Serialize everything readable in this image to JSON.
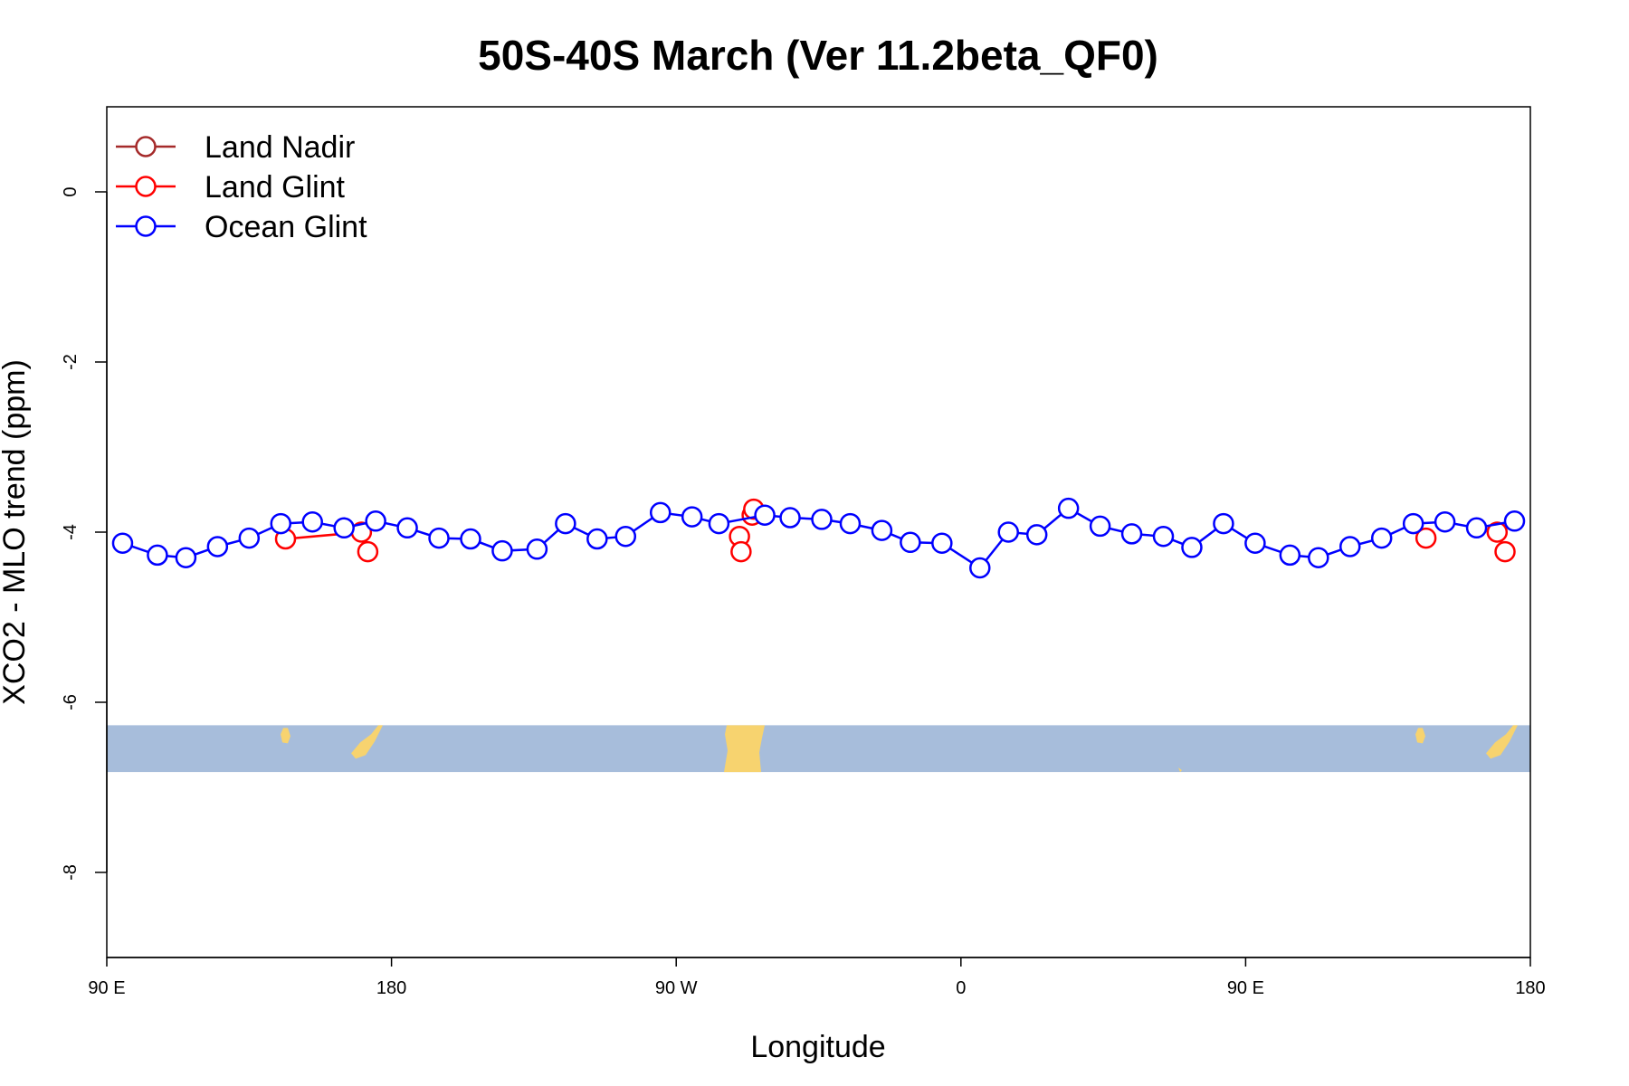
{
  "chart_data": {
    "type": "line",
    "title": "50S-40S March (Ver 11.2beta_QF0)",
    "xlabel": "Longitude",
    "ylabel": "XCO2 - MLO trend (ppm)",
    "xlim": [
      90,
      540
    ],
    "ylim": [
      -9,
      1
    ],
    "x_ticks": [
      {
        "value": 90,
        "label": "90 E"
      },
      {
        "value": 180,
        "label": "180"
      },
      {
        "value": 270,
        "label": "90 W"
      },
      {
        "value": 360,
        "label": "0"
      },
      {
        "value": 450,
        "label": "90 E"
      },
      {
        "value": 540,
        "label": "180"
      }
    ],
    "y_ticks": [
      {
        "value": 0,
        "label": "0"
      },
      {
        "value": -2,
        "label": "-2"
      },
      {
        "value": -4,
        "label": "-4"
      },
      {
        "value": -6,
        "label": "-6"
      },
      {
        "value": -8,
        "label": "-8"
      }
    ],
    "map_band": {
      "y_top": -6.27,
      "y_bottom": -6.82,
      "ocean_color": "#a7bddb",
      "land_color": "#f7d36f"
    },
    "legend_position": "top-left",
    "series": [
      {
        "name": "Land Nadir",
        "color": "#a52a2a",
        "points": []
      },
      {
        "name": "Land Glint",
        "color": "#ff0000",
        "points": [
          [
            146.5,
            -4.08
          ],
          [
            170.5,
            -4.0
          ],
          [
            172.5,
            -4.23
          ],
          [
            290,
            -4.05
          ],
          [
            290.5,
            -4.23
          ],
          [
            294,
            -3.8
          ],
          [
            294.5,
            -3.73
          ],
          [
            507,
            -4.07
          ],
          [
            529.5,
            -4.0
          ],
          [
            532,
            -4.23
          ]
        ]
      },
      {
        "name": "Ocean Glint",
        "color": "#0000ff",
        "points": [
          [
            95,
            -4.13
          ],
          [
            106,
            -4.27
          ],
          [
            115,
            -4.3
          ],
          [
            125,
            -4.17
          ],
          [
            135,
            -4.07
          ],
          [
            145,
            -3.9
          ],
          [
            155,
            -3.88
          ],
          [
            165,
            -3.95
          ],
          [
            175,
            -3.87
          ],
          [
            185,
            -3.95
          ],
          [
            195,
            -4.07
          ],
          [
            205,
            -4.08
          ],
          [
            215,
            -4.22
          ],
          [
            226,
            -4.2
          ],
          [
            235,
            -3.9
          ],
          [
            245,
            -4.08
          ],
          [
            254,
            -4.05
          ],
          [
            265,
            -3.77
          ],
          [
            275,
            -3.82
          ],
          [
            283.5,
            -3.9
          ],
          [
            298,
            -3.8
          ],
          [
            306,
            -3.83
          ],
          [
            316,
            -3.85
          ],
          [
            325,
            -3.9
          ],
          [
            335,
            -3.98
          ],
          [
            344,
            -4.12
          ],
          [
            354,
            -4.13
          ],
          [
            366,
            -4.42
          ],
          [
            375,
            -4.0
          ],
          [
            384,
            -4.03
          ],
          [
            394,
            -3.72
          ],
          [
            404,
            -3.93
          ],
          [
            414,
            -4.02
          ],
          [
            424,
            -4.05
          ],
          [
            433,
            -4.18
          ],
          [
            443,
            -3.9
          ],
          [
            453,
            -4.13
          ],
          [
            464,
            -4.27
          ],
          [
            473,
            -4.3
          ],
          [
            483,
            -4.17
          ],
          [
            493,
            -4.07
          ],
          [
            503,
            -3.9
          ],
          [
            513,
            -3.88
          ],
          [
            523,
            -3.95
          ],
          [
            535,
            -3.87
          ]
        ]
      }
    ]
  }
}
